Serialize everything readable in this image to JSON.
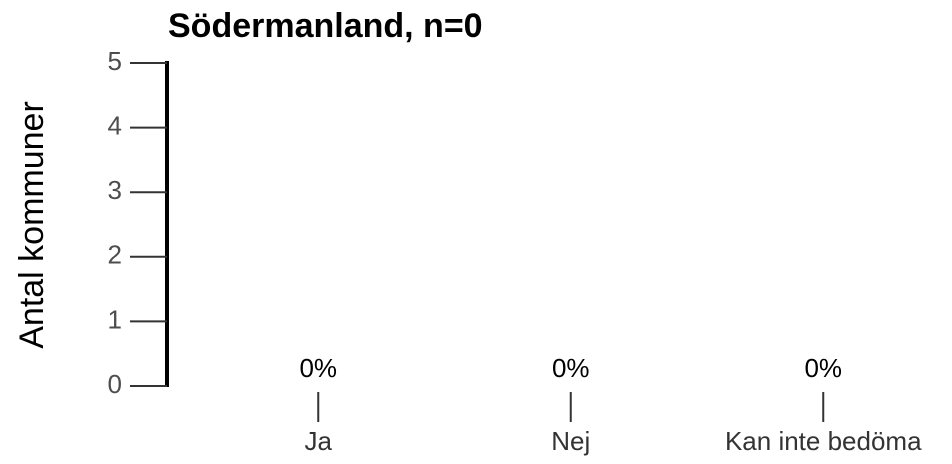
{
  "chart_data": {
    "type": "bar",
    "title": "Södermanland, n=0",
    "y_label": "Antal kommuner",
    "categories": [
      "Ja",
      "Nej",
      "Kan inte bedöma"
    ],
    "values": [
      0,
      0,
      0
    ],
    "value_labels": [
      "0%",
      "0%",
      "0%"
    ],
    "color": "#4472c4",
    "ylim": [
      0,
      5
    ],
    "yticks": [
      0,
      1,
      2,
      3,
      4,
      5
    ]
  }
}
